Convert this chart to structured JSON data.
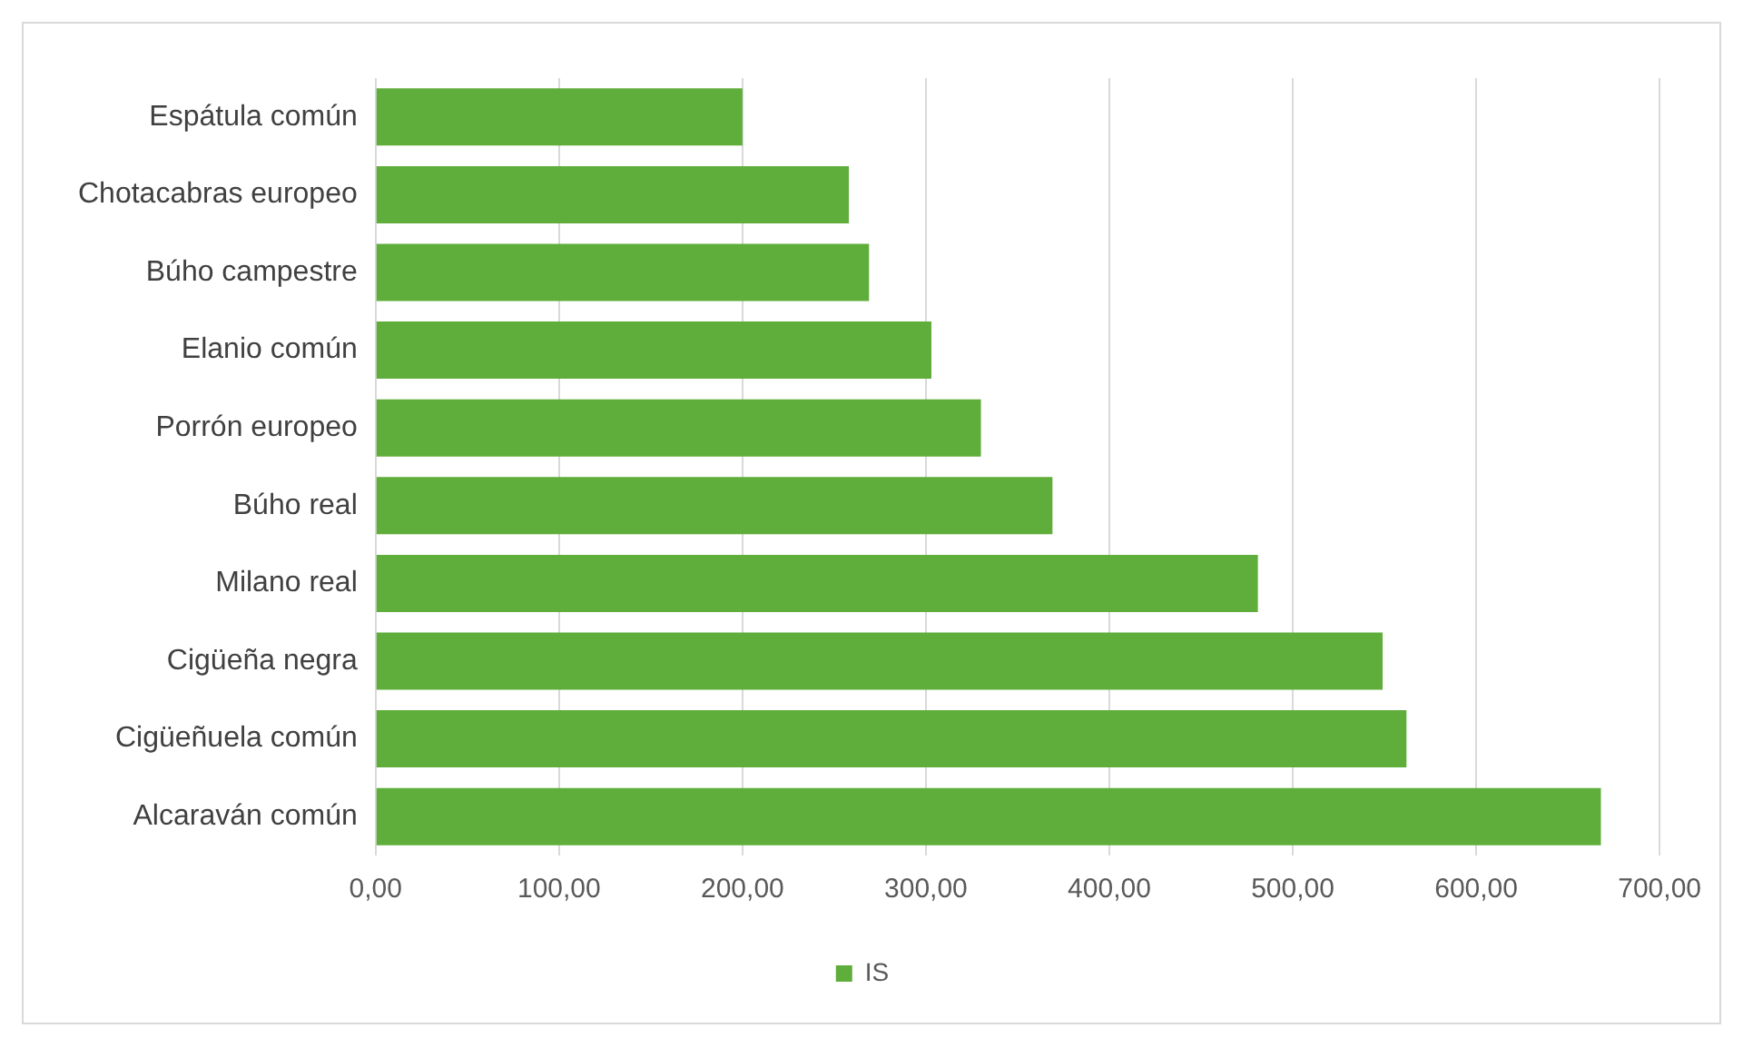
{
  "chart_data": {
    "type": "bar",
    "orientation": "horizontal",
    "categories": [
      "Espátula común",
      "Chotacabras europeo",
      "Búho campestre",
      "Elanio común",
      "Porrón europeo",
      "Búho real",
      "Milano real",
      "Cigüeña negra",
      "Cigüeñuela común",
      "Alcaraván común"
    ],
    "series": [
      {
        "name": "IS",
        "color": "#5fad3a",
        "values": [
          200,
          258,
          269,
          303,
          330,
          369,
          481,
          549,
          562,
          668
        ]
      }
    ],
    "xlim": [
      0,
      700
    ],
    "xticks": [
      {
        "value": 0,
        "label": "0,00"
      },
      {
        "value": 100,
        "label": "100,00"
      },
      {
        "value": 200,
        "label": "200,00"
      },
      {
        "value": 300,
        "label": "300,00"
      },
      {
        "value": 400,
        "label": "400,00"
      },
      {
        "value": 500,
        "label": "500,00"
      },
      {
        "value": 600,
        "label": "600,00"
      },
      {
        "value": 700,
        "label": "700,00"
      }
    ],
    "grid": "x",
    "legend": "bottom"
  }
}
